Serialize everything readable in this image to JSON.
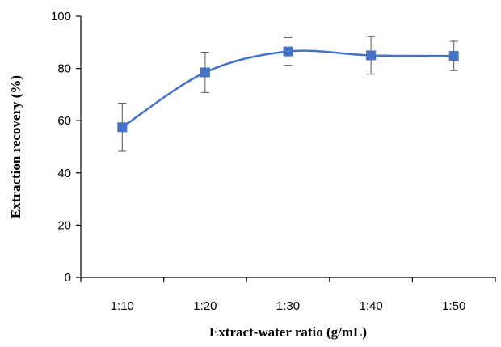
{
  "chart_data": {
    "type": "line",
    "title": "",
    "xlabel": "Extract-water ratio (g/mL)",
    "ylabel": "Extraction recovery (%)",
    "categories": [
      "1:10",
      "1:20",
      "1:30",
      "1:40",
      "1:50"
    ],
    "series": [
      {
        "values": [
          57.5,
          78.5,
          86.5,
          85.0,
          84.8
        ],
        "error": [
          9.2,
          7.7,
          5.3,
          7.2,
          5.6
        ],
        "color": "#4472C4",
        "marker": "square",
        "smooth": true
      }
    ],
    "ylim": [
      0,
      100
    ],
    "yticks": [
      0,
      20,
      40,
      60,
      80,
      100
    ],
    "grid": false,
    "legend": "none"
  }
}
